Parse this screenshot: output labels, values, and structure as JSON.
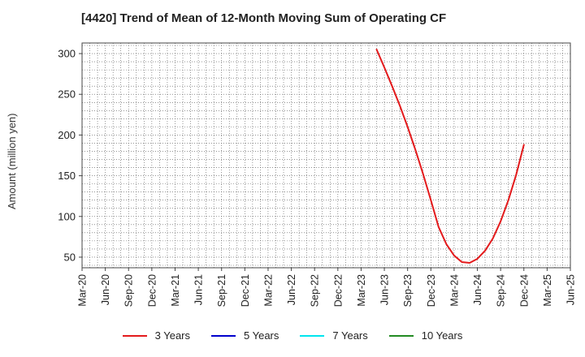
{
  "colors": {
    "three_years": "#e31a1c",
    "five_years": "#0000cc",
    "seven_years": "#00e5ee",
    "ten_years": "#228b22",
    "grid": "#555555"
  },
  "chart_data": {
    "type": "line",
    "title": "[4420]  Trend of Mean of 12-Month Moving Sum of Operating CF",
    "ylabel": "Amount (million yen)",
    "xlabel": "",
    "ylim": [
      37,
      313
    ],
    "xlim": [
      "2020-03",
      "2025-06"
    ],
    "y_ticks": [
      50,
      100,
      150,
      200,
      250,
      300
    ],
    "x_ticks": [
      "Mar-20",
      "Jun-20",
      "Sep-20",
      "Dec-20",
      "Mar-21",
      "Jun-21",
      "Sep-21",
      "Dec-21",
      "Mar-22",
      "Jun-22",
      "Sep-22",
      "Dec-22",
      "Mar-23",
      "Jun-23",
      "Sep-23",
      "Dec-23",
      "Mar-24",
      "Jun-24",
      "Sep-24",
      "Dec-24",
      "Mar-25",
      "Jun-25"
    ],
    "grid": true,
    "legend_position": "bottom",
    "series": [
      {
        "name": "3 Years",
        "color": "#e31a1c",
        "x": [
          "2023-05",
          "2023-06",
          "2023-07",
          "2023-08",
          "2023-09",
          "2023-10",
          "2023-11",
          "2023-12",
          "2024-01",
          "2024-02",
          "2024-03",
          "2024-04",
          "2024-05",
          "2024-06",
          "2024-07",
          "2024-08",
          "2024-09",
          "2024-10",
          "2024-11",
          "2024-12"
        ],
        "values": [
          305,
          283,
          260,
          236,
          210,
          182,
          152,
          120,
          87,
          66,
          52,
          44,
          43,
          48,
          58,
          73,
          94,
          120,
          151,
          188
        ]
      },
      {
        "name": "5 Years",
        "color": "#0000cc",
        "x": [],
        "values": []
      },
      {
        "name": "7 Years",
        "color": "#00e5ee",
        "x": [],
        "values": []
      },
      {
        "name": "10 Years",
        "color": "#228b22",
        "x": [],
        "values": []
      }
    ]
  }
}
